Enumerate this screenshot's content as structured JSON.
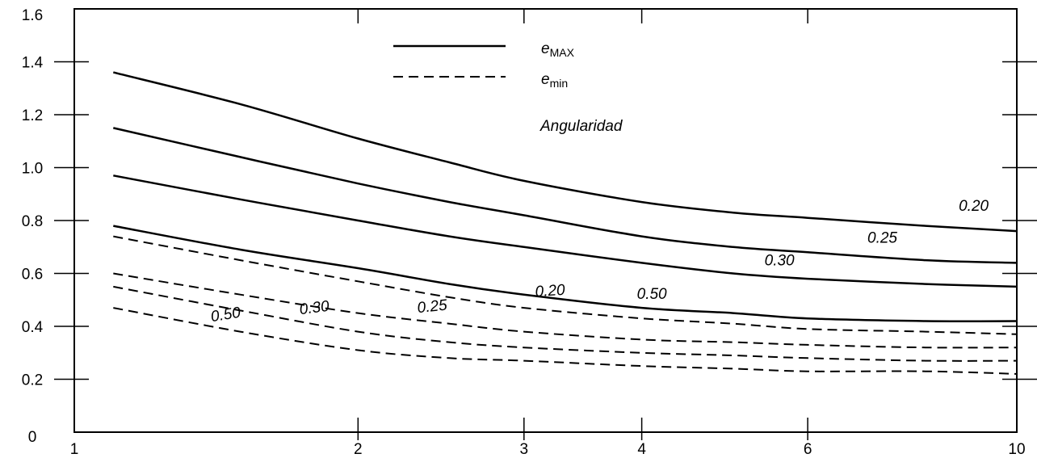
{
  "chart_data": {
    "type": "line",
    "title": "",
    "xlabel": "",
    "ylabel": "",
    "xscale": "log",
    "xlim": [
      1,
      10
    ],
    "ylim": [
      0,
      1.6
    ],
    "x_ticks": [
      "1",
      "2",
      "3",
      "4",
      "6",
      "10"
    ],
    "y_ticks": [
      "0",
      "0.2",
      "0.4",
      "0.6",
      "0.8",
      "1.0",
      "1.2",
      "1.4",
      "1.6"
    ],
    "grid": false,
    "legend": {
      "placement": "top-center",
      "entries": [
        {
          "symbol": "e",
          "sub": "MAX",
          "style": "solid"
        },
        {
          "symbol": "e",
          "sub": "min",
          "style": "dashed"
        }
      ]
    },
    "annotation": "Angularidad",
    "series": [
      {
        "label": "0.20",
        "kind": "e_MAX",
        "style": "solid",
        "x": [
          1.1,
          1.5,
          2,
          2.5,
          3,
          4,
          5,
          6,
          8,
          10
        ],
        "y": [
          1.36,
          1.24,
          1.11,
          1.02,
          0.95,
          0.87,
          0.83,
          0.81,
          0.78,
          0.76
        ]
      },
      {
        "label": "0.25",
        "kind": "e_MAX",
        "style": "solid",
        "x": [
          1.1,
          1.5,
          2,
          2.5,
          3,
          4,
          5,
          6,
          8,
          10
        ],
        "y": [
          1.15,
          1.04,
          0.94,
          0.87,
          0.82,
          0.74,
          0.7,
          0.68,
          0.65,
          0.64
        ]
      },
      {
        "label": "0.30",
        "kind": "e_MAX",
        "style": "solid",
        "x": [
          1.1,
          1.5,
          2,
          2.5,
          3,
          4,
          5,
          6,
          8,
          10
        ],
        "y": [
          0.97,
          0.88,
          0.8,
          0.74,
          0.7,
          0.64,
          0.6,
          0.58,
          0.56,
          0.55
        ]
      },
      {
        "label": "0.50",
        "kind": "e_MAX",
        "style": "solid",
        "x": [
          1.1,
          1.5,
          2,
          2.5,
          3,
          4,
          5,
          6,
          8,
          10
        ],
        "y": [
          0.78,
          0.69,
          0.62,
          0.56,
          0.52,
          0.47,
          0.45,
          0.43,
          0.42,
          0.42
        ]
      },
      {
        "label": "0.20",
        "kind": "e_min",
        "style": "dashed",
        "x": [
          1.1,
          1.5,
          2,
          2.5,
          3,
          4,
          5,
          6,
          8,
          10
        ],
        "y": [
          0.74,
          0.65,
          0.57,
          0.51,
          0.47,
          0.43,
          0.41,
          0.39,
          0.38,
          0.37
        ]
      },
      {
        "label": "0.25",
        "kind": "e_min",
        "style": "dashed",
        "x": [
          1.1,
          1.5,
          2,
          2.5,
          3,
          4,
          5,
          6,
          8,
          10
        ],
        "y": [
          0.6,
          0.52,
          0.45,
          0.41,
          0.38,
          0.35,
          0.34,
          0.33,
          0.32,
          0.32
        ]
      },
      {
        "label": "0.30",
        "kind": "e_min",
        "style": "dashed",
        "x": [
          1.1,
          1.5,
          2,
          2.5,
          3,
          4,
          5,
          6,
          8,
          10
        ],
        "y": [
          0.55,
          0.46,
          0.38,
          0.34,
          0.32,
          0.3,
          0.29,
          0.28,
          0.27,
          0.27
        ]
      },
      {
        "label": "0.50",
        "kind": "e_min",
        "style": "dashed",
        "x": [
          1.1,
          1.5,
          2,
          2.5,
          3,
          4,
          5,
          6,
          8,
          10
        ],
        "y": [
          0.47,
          0.38,
          0.31,
          0.28,
          0.27,
          0.25,
          0.24,
          0.23,
          0.23,
          0.22
        ]
      }
    ]
  }
}
